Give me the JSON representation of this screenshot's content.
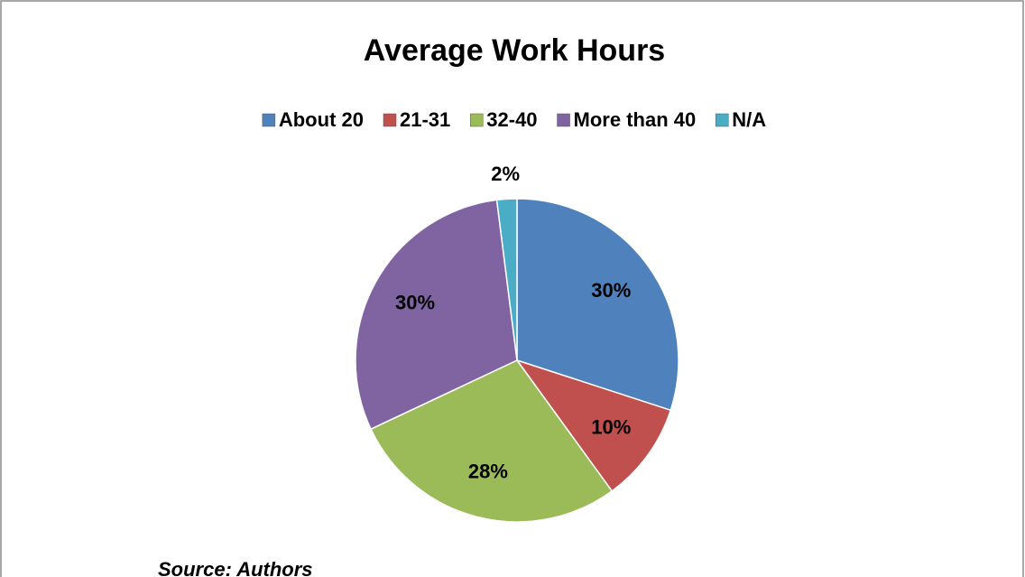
{
  "chart_data": {
    "type": "pie",
    "title": "Average Work Hours",
    "categories": [
      "About 20",
      "21-31",
      "32-40",
      "More than 40",
      "N/A"
    ],
    "values": [
      30,
      10,
      28,
      30,
      2
    ],
    "value_labels": [
      "30%",
      "10%",
      "28%",
      "30%",
      "2%"
    ],
    "colors": [
      "#4f81bd",
      "#c0504d",
      "#9bbb59",
      "#8064a2",
      "#4bacc6"
    ],
    "legend": "top",
    "source": "Source: Authors"
  }
}
